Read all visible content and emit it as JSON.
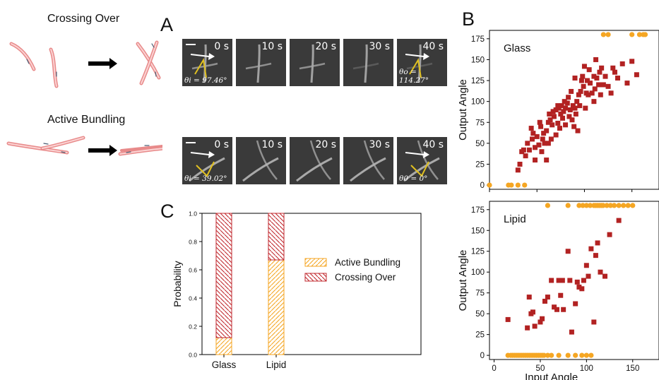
{
  "figure": {
    "labels": {
      "A": "A",
      "B": "B",
      "C": "C"
    },
    "schematic": {
      "crossing_label": "Crossing Over",
      "bundling_label": "Active Bundling"
    },
    "panel_A": {
      "rows": [
        {
          "times": [
            "0 s",
            "10 s",
            "20 s",
            "30 s",
            "40 s"
          ],
          "theta_in": "θi = 97.46°",
          "theta_out": "θo = 114.27°"
        },
        {
          "times": [
            "0 s",
            "10 s",
            "20 s",
            "30 s",
            "40 s"
          ],
          "theta_in": "θi = 39.02°",
          "theta_out": "θ0 = 0°"
        }
      ]
    },
    "colors": {
      "bundling": "#f5a623",
      "crossing": "#c0272d",
      "orange_points": "#f5a623",
      "red_points": "#b22222"
    }
  },
  "chart_data": [
    {
      "type": "bar",
      "panel": "C",
      "categories": [
        "Glass",
        "Lipid"
      ],
      "series": [
        {
          "name": "Active Bundling",
          "values": [
            0.12,
            0.67
          ]
        },
        {
          "name": "Crossing Over",
          "values": [
            0.88,
            0.33
          ]
        }
      ],
      "stacked": true,
      "ylabel": "Probability",
      "ylim": [
        0,
        1.0
      ],
      "yticks": [
        "0.0",
        "0.2",
        "0.4",
        "0.6",
        "0.8",
        "1.0"
      ],
      "legend_position": "center-right"
    },
    {
      "type": "scatter",
      "panel": "B-top",
      "title": "Glass",
      "ylabel": "Output Angle",
      "xlim": [
        0,
        180
      ],
      "ylim": [
        -5,
        185
      ],
      "yticks": [
        "0",
        "25",
        "50",
        "75",
        "100",
        "125",
        "150",
        "175"
      ],
      "red_squares": [
        [
          30,
          18
        ],
        [
          32,
          25
        ],
        [
          34,
          40
        ],
        [
          36,
          42
        ],
        [
          38,
          35
        ],
        [
          40,
          50
        ],
        [
          42,
          42
        ],
        [
          44,
          68
        ],
        [
          45,
          55
        ],
        [
          46,
          62
        ],
        [
          48,
          30
        ],
        [
          48,
          45
        ],
        [
          50,
          58
        ],
        [
          52,
          48
        ],
        [
          53,
          75
        ],
        [
          54,
          70
        ],
        [
          55,
          40
        ],
        [
          56,
          55
        ],
        [
          57,
          62
        ],
        [
          58,
          50
        ],
        [
          60,
          65
        ],
        [
          60,
          30
        ],
        [
          62,
          50
        ],
        [
          62,
          75
        ],
        [
          63,
          85
        ],
        [
          64,
          78
        ],
        [
          65,
          55
        ],
        [
          66,
          72
        ],
        [
          67,
          88
        ],
        [
          68,
          82
        ],
        [
          70,
          60
        ],
        [
          70,
          90
        ],
        [
          72,
          74
        ],
        [
          73,
          92
        ],
        [
          74,
          68
        ],
        [
          75,
          85
        ],
        [
          76,
          95
        ],
        [
          77,
          80
        ],
        [
          78,
          88
        ],
        [
          79,
          100
        ],
        [
          80,
          72
        ],
        [
          80,
          92
        ],
        [
          82,
          98
        ],
        [
          83,
          105
        ],
        [
          84,
          82
        ],
        [
          85,
          90
        ],
        [
          86,
          112
        ],
        [
          87,
          78
        ],
        [
          88,
          95
        ],
        [
          89,
          70
        ],
        [
          90,
          92
        ],
        [
          91,
          85
        ],
        [
          92,
          100
        ],
        [
          93,
          65
        ],
        [
          94,
          108
        ],
        [
          95,
          95
        ],
        [
          96,
          112
        ],
        [
          97,
          125
        ],
        [
          98,
          130
        ],
        [
          99,
          118
        ],
        [
          100,
          142
        ],
        [
          101,
          92
        ],
        [
          102,
          110
        ],
        [
          103,
          125
        ],
        [
          104,
          108
        ],
        [
          105,
          138
        ],
        [
          106,
          122
        ],
        [
          108,
          110
        ],
        [
          110,
          130
        ],
        [
          111,
          115
        ],
        [
          112,
          150
        ],
        [
          113,
          128
        ],
        [
          115,
          120
        ],
        [
          116,
          135
        ],
        [
          117,
          108
        ],
        [
          118,
          140
        ],
        [
          120,
          120
        ],
        [
          122,
          130
        ],
        [
          125,
          118
        ],
        [
          128,
          110
        ],
        [
          130,
          140
        ],
        [
          132,
          135
        ],
        [
          135,
          128
        ],
        [
          140,
          145
        ],
        [
          145,
          122
        ],
        [
          150,
          148
        ],
        [
          155,
          132
        ],
        [
          72,
          95
        ],
        [
          90,
          128
        ],
        [
          110,
          100
        ]
      ],
      "orange_circles": [
        [
          0,
          0
        ],
        [
          20,
          0
        ],
        [
          23,
          0
        ],
        [
          30,
          0
        ],
        [
          37,
          0
        ],
        [
          120,
          180
        ],
        [
          125,
          180
        ],
        [
          150,
          180
        ],
        [
          158,
          180
        ],
        [
          162,
          180
        ],
        [
          164,
          180
        ]
      ]
    },
    {
      "type": "scatter",
      "panel": "B-bottom",
      "title": "Lipid",
      "xlabel": "Input Angle",
      "ylabel": "Output Angle",
      "xlim": [
        -5,
        180
      ],
      "ylim": [
        -5,
        185
      ],
      "xticks": [
        "0",
        "50",
        "100",
        "150"
      ],
      "yticks": [
        "0",
        "25",
        "50",
        "75",
        "100",
        "125",
        "150",
        "175"
      ],
      "red_squares": [
        [
          15,
          43
        ],
        [
          36,
          33
        ],
        [
          38,
          70
        ],
        [
          40,
          50
        ],
        [
          42,
          52
        ],
        [
          44,
          35
        ],
        [
          50,
          40
        ],
        [
          52,
          44
        ],
        [
          55,
          65
        ],
        [
          58,
          70
        ],
        [
          62,
          90
        ],
        [
          65,
          58
        ],
        [
          68,
          55
        ],
        [
          70,
          90
        ],
        [
          72,
          72
        ],
        [
          74,
          90
        ],
        [
          75,
          55
        ],
        [
          80,
          125
        ],
        [
          82,
          90
        ],
        [
          84,
          28
        ],
        [
          88,
          62
        ],
        [
          90,
          88
        ],
        [
          92,
          82
        ],
        [
          95,
          80
        ],
        [
          97,
          90
        ],
        [
          100,
          108
        ],
        [
          102,
          95
        ],
        [
          105,
          128
        ],
        [
          108,
          40
        ],
        [
          110,
          120
        ],
        [
          112,
          135
        ],
        [
          115,
          100
        ],
        [
          120,
          95
        ],
        [
          125,
          145
        ],
        [
          135,
          162
        ]
      ],
      "orange_circles": [
        [
          15,
          0
        ],
        [
          18,
          0
        ],
        [
          20,
          0
        ],
        [
          22,
          0
        ],
        [
          24,
          0
        ],
        [
          26,
          0
        ],
        [
          28,
          0
        ],
        [
          30,
          0
        ],
        [
          32,
          0
        ],
        [
          34,
          0
        ],
        [
          36,
          0
        ],
        [
          38,
          0
        ],
        [
          40,
          0
        ],
        [
          42,
          0
        ],
        [
          44,
          0
        ],
        [
          46,
          0
        ],
        [
          48,
          0
        ],
        [
          50,
          0
        ],
        [
          52,
          0
        ],
        [
          54,
          0
        ],
        [
          58,
          0
        ],
        [
          62,
          0
        ],
        [
          70,
          0
        ],
        [
          80,
          0
        ],
        [
          88,
          0
        ],
        [
          95,
          0
        ],
        [
          100,
          0
        ],
        [
          105,
          0
        ],
        [
          58,
          180
        ],
        [
          80,
          180
        ],
        [
          92,
          180
        ],
        [
          96,
          180
        ],
        [
          100,
          180
        ],
        [
          104,
          180
        ],
        [
          108,
          180
        ],
        [
          110,
          180
        ],
        [
          112,
          180
        ],
        [
          114,
          180
        ],
        [
          116,
          180
        ],
        [
          118,
          180
        ],
        [
          122,
          180
        ],
        [
          126,
          180
        ],
        [
          130,
          180
        ],
        [
          135,
          180
        ],
        [
          140,
          180
        ],
        [
          145,
          180
        ],
        [
          150,
          180
        ]
      ]
    }
  ]
}
